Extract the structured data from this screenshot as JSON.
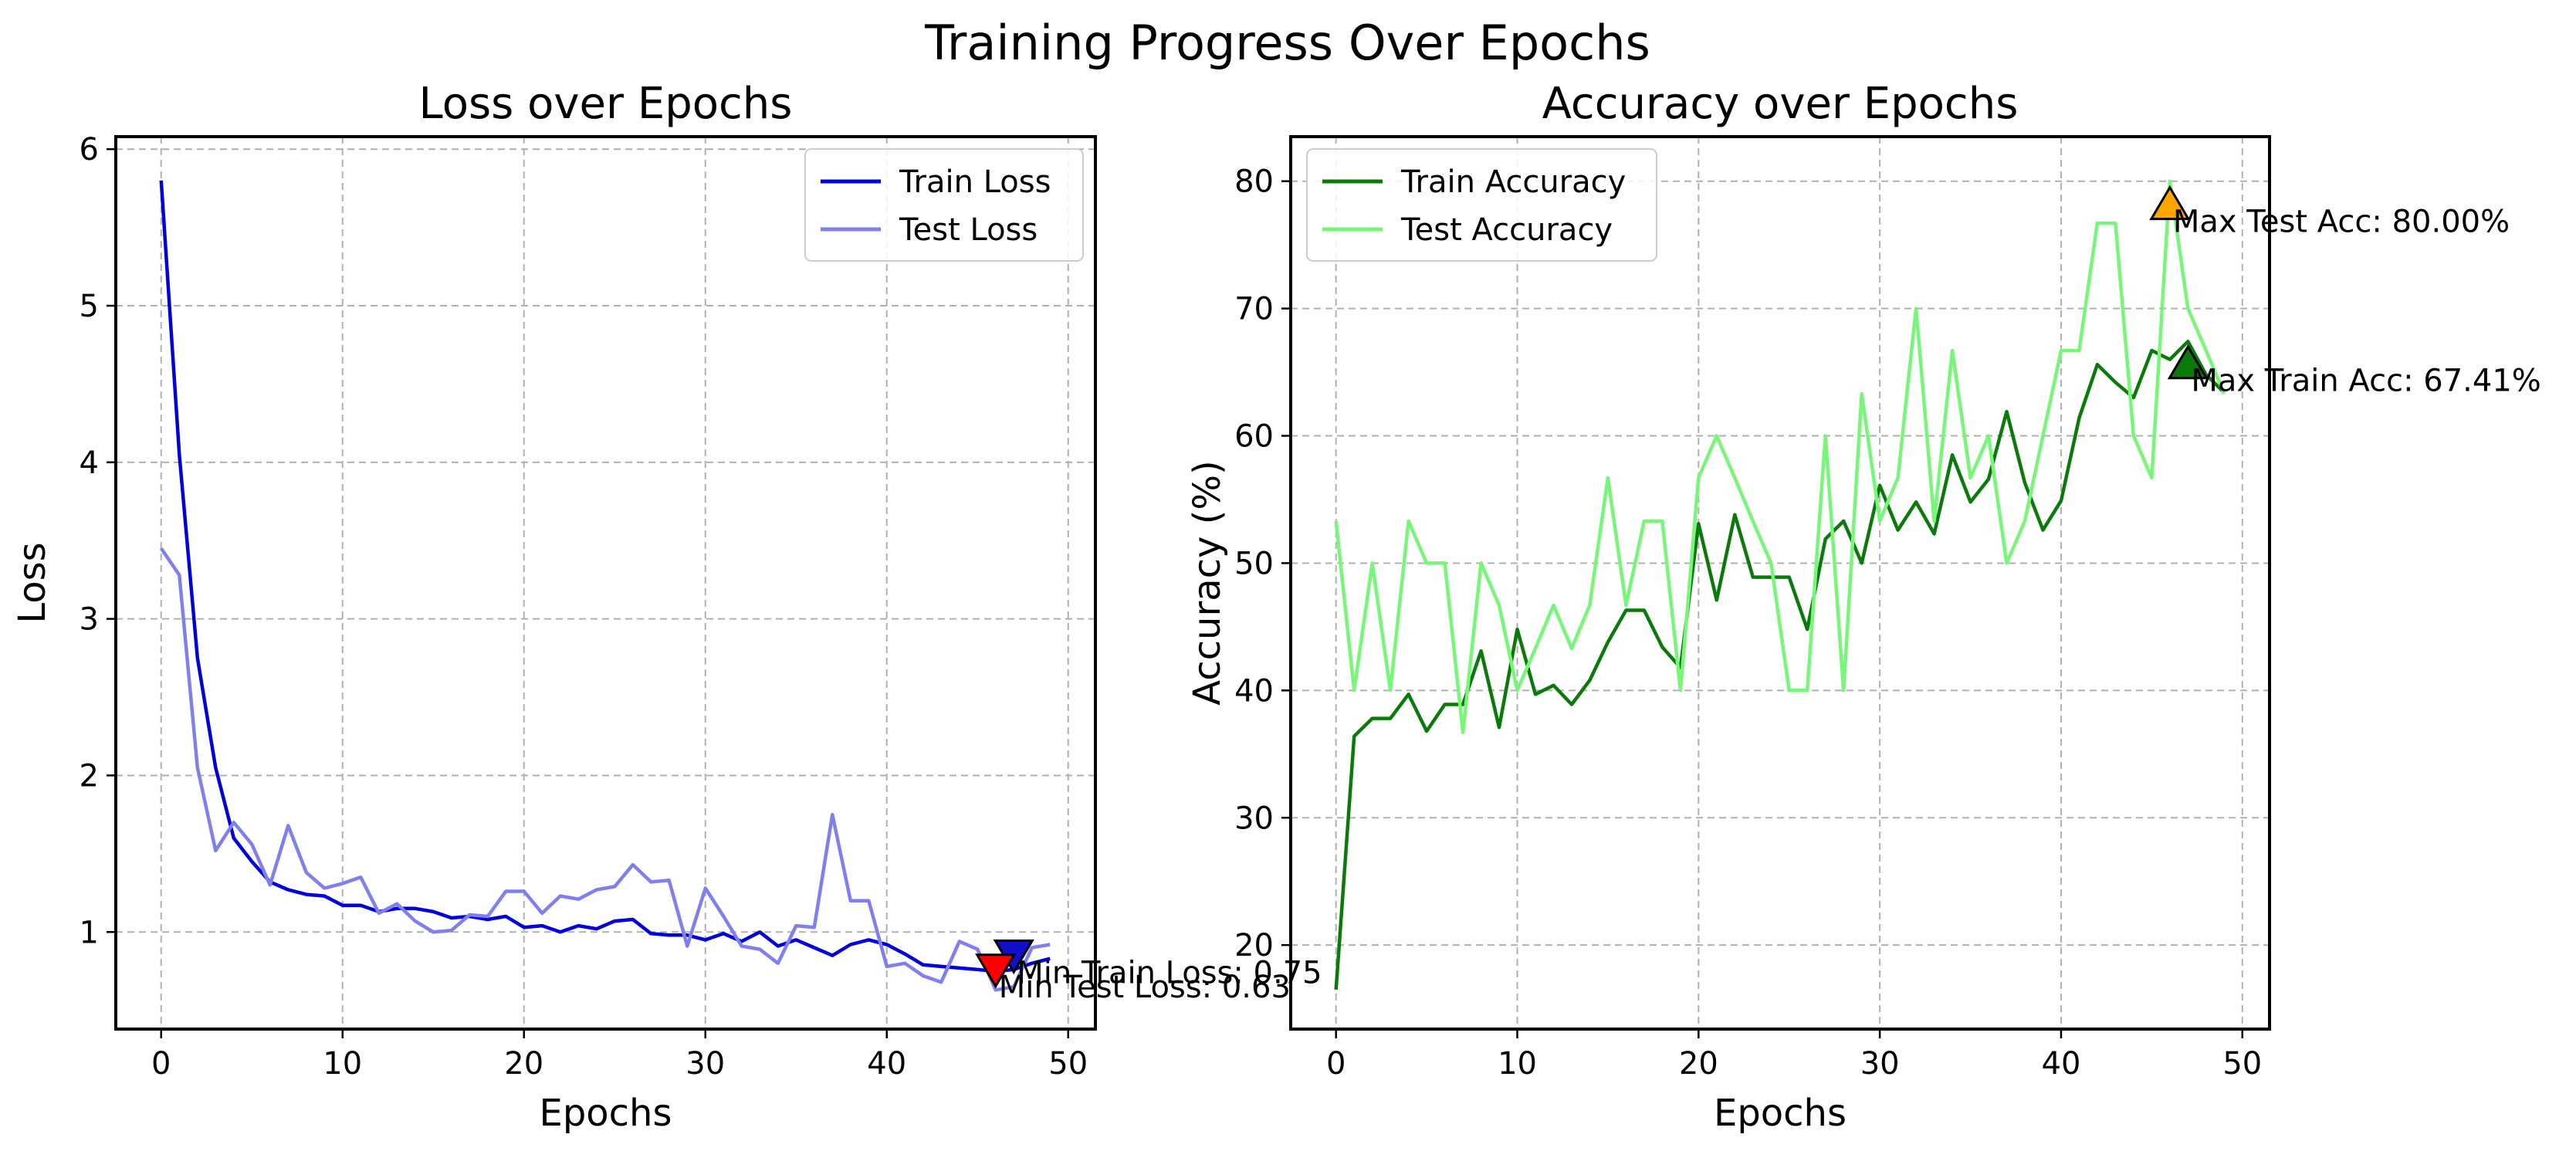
{
  "figure": {
    "suptitle": "Training Progress Over Epochs",
    "colors": {
      "train_loss": "#0000dd",
      "test_loss": "#7f7ff0",
      "train_acc": "#0a7a0a",
      "test_acc": "#77f777",
      "min_train_loss_marker": "#1010c8",
      "min_test_loss_marker": "#ff0000",
      "max_test_acc_marker": "#ffa500",
      "max_train_acc_marker": "#0a7a0a",
      "grid": "#b0b0b0"
    }
  },
  "chart_data": [
    {
      "type": "line",
      "title": "Loss over Epochs",
      "xlabel": "Epochs",
      "ylabel": "Loss",
      "xlim": [
        -2.5,
        51.5
      ],
      "ylim": [
        0.38,
        6.08
      ],
      "xticks": [
        0,
        10,
        20,
        30,
        40,
        50
      ],
      "yticks": [
        1,
        2,
        3,
        4,
        5,
        6
      ],
      "grid": true,
      "legend_position": "upper right",
      "x": [
        0,
        1,
        2,
        3,
        4,
        5,
        6,
        7,
        8,
        9,
        10,
        11,
        12,
        13,
        14,
        15,
        16,
        17,
        18,
        19,
        20,
        21,
        22,
        23,
        24,
        25,
        26,
        27,
        28,
        29,
        30,
        31,
        32,
        33,
        34,
        35,
        36,
        37,
        38,
        39,
        40,
        41,
        42,
        43,
        44,
        45,
        46,
        47,
        48,
        49
      ],
      "series": [
        {
          "name": "Train Loss",
          "color_key": "train_loss",
          "values": [
            5.8,
            4.05,
            2.75,
            2.05,
            1.6,
            1.45,
            1.32,
            1.27,
            1.24,
            1.23,
            1.17,
            1.17,
            1.13,
            1.15,
            1.15,
            1.13,
            1.09,
            1.1,
            1.08,
            1.1,
            1.03,
            1.04,
            1.0,
            1.04,
            1.02,
            1.07,
            1.08,
            0.99,
            0.98,
            0.98,
            0.95,
            0.99,
            0.94,
            1.0,
            0.91,
            0.95,
            0.9,
            0.85,
            0.92,
            0.95,
            0.92,
            0.86,
            0.79,
            0.78,
            0.77,
            0.76,
            0.75,
            0.76,
            0.8,
            0.83
          ]
        },
        {
          "name": "Test Loss",
          "color_key": "test_loss",
          "values": [
            3.45,
            3.28,
            2.05,
            1.52,
            1.7,
            1.56,
            1.3,
            1.68,
            1.38,
            1.28,
            1.31,
            1.35,
            1.12,
            1.18,
            1.07,
            1.0,
            1.01,
            1.11,
            1.1,
            1.26,
            1.26,
            1.12,
            1.23,
            1.21,
            1.27,
            1.29,
            1.43,
            1.32,
            1.33,
            0.91,
            1.28,
            1.1,
            0.91,
            0.89,
            0.8,
            1.04,
            1.03,
            1.75,
            1.2,
            1.2,
            0.78,
            0.8,
            0.72,
            0.68,
            0.94,
            0.89,
            0.63,
            0.65,
            0.9,
            0.92
          ]
        }
      ],
      "annotations": [
        {
          "label": "Min Train Loss: 0.75",
          "x": 47,
          "y": 0.85,
          "marker": "down-triangle",
          "color_key": "min_train_loss_marker"
        },
        {
          "label": "Min Test Loss: 0.63",
          "x": 46,
          "y": 0.76,
          "marker": "down-triangle",
          "color_key": "min_test_loss_marker"
        }
      ]
    },
    {
      "type": "line",
      "title": "Accuracy over Epochs",
      "xlabel": "Epochs",
      "ylabel": "Accuracy (%)",
      "xlim": [
        -2.5,
        51.5
      ],
      "ylim": [
        13.4,
        83.5
      ],
      "xticks": [
        0,
        10,
        20,
        30,
        40,
        50
      ],
      "yticks": [
        20,
        30,
        40,
        50,
        60,
        70,
        80
      ],
      "grid": true,
      "legend_position": "upper left",
      "x": [
        0,
        1,
        2,
        3,
        4,
        5,
        6,
        7,
        8,
        9,
        10,
        11,
        12,
        13,
        14,
        15,
        16,
        17,
        18,
        19,
        20,
        21,
        22,
        23,
        24,
        25,
        26,
        27,
        28,
        29,
        30,
        31,
        32,
        33,
        34,
        35,
        36,
        37,
        38,
        39,
        40,
        41,
        42,
        43,
        44,
        45,
        46,
        47,
        48,
        49
      ],
      "series": [
        {
          "name": "Train Accuracy",
          "color_key": "train_acc",
          "values": [
            16.5,
            36.4,
            37.8,
            37.8,
            39.7,
            36.8,
            38.9,
            38.9,
            43.1,
            37.1,
            44.8,
            39.7,
            40.4,
            38.9,
            40.8,
            43.8,
            46.3,
            46.3,
            43.4,
            41.8,
            53.1,
            47.1,
            53.8,
            48.9,
            48.9,
            48.9,
            44.8,
            51.9,
            53.3,
            50.0,
            56.1,
            52.6,
            54.8,
            52.3,
            58.5,
            54.8,
            56.6,
            61.9,
            56.3,
            52.6,
            54.9,
            61.4,
            65.6,
            64.2,
            63.0,
            66.7,
            66.0,
            67.41,
            64.8,
            63.4
          ]
        },
        {
          "name": "Test Accuracy",
          "color_key": "test_acc",
          "values": [
            53.3,
            40.0,
            50.0,
            40.0,
            53.3,
            50.0,
            50.0,
            36.7,
            50.0,
            46.7,
            40.0,
            43.3,
            46.7,
            43.3,
            46.7,
            56.7,
            46.7,
            53.3,
            53.3,
            40.0,
            56.7,
            60.0,
            56.7,
            53.3,
            50.0,
            40.0,
            40.0,
            60.0,
            40.0,
            63.3,
            53.3,
            56.7,
            70.0,
            53.3,
            66.7,
            56.7,
            60.0,
            50.0,
            53.3,
            60.0,
            66.7,
            66.7,
            76.7,
            76.7,
            60.0,
            56.7,
            80.0,
            70.0,
            66.7,
            63.3
          ]
        }
      ],
      "annotations": [
        {
          "label": "Max Test Acc: 80.00%",
          "x": 46,
          "y": 78.2,
          "marker": "up-triangle",
          "color_key": "max_test_acc_marker"
        },
        {
          "label": "Max Train Acc: 67.41%",
          "x": 47,
          "y": 65.7,
          "marker": "up-triangle",
          "color_key": "max_train_acc_marker"
        }
      ]
    }
  ]
}
